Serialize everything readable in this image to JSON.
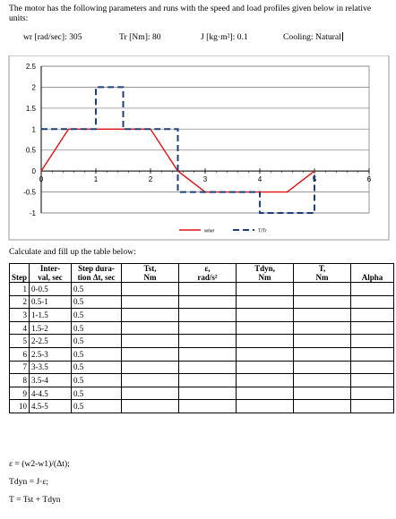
{
  "intro": "The motor has the following parameters and runs with the speed and load profiles given below in relative units:",
  "params": {
    "wr": "wr [rad/sec]:  305",
    "tr": "Tr [Nm]:  80",
    "j": "J [kg·m²]:  0.1",
    "cooling": "Cooling:  Natural"
  },
  "chart_data": {
    "type": "line",
    "xlim": [
      0,
      6
    ],
    "ylim": [
      -1,
      2.5
    ],
    "y_ticks": [
      "2.5",
      "2",
      "1.5",
      "1",
      "0.5",
      "0",
      "-0.5",
      "-1"
    ],
    "x_ticks": [
      "0",
      "1",
      "2",
      "3",
      "4",
      "5",
      "6"
    ],
    "grid": true,
    "legend_position": "bottom-center",
    "series": [
      {
        "name": "w/wr",
        "style": "solid",
        "color": "#e01010",
        "x": [
          0,
          0.5,
          1.5,
          2,
          2.5,
          3,
          4,
          4.5,
          5
        ],
        "y": [
          0,
          1,
          1,
          1,
          0,
          -0.5,
          -0.5,
          -0.5,
          0
        ]
      },
      {
        "name": "T/Tr",
        "style": "dashed",
        "color": "#1f3f7a",
        "x": [
          0,
          1,
          1,
          1.5,
          1.5,
          2.5,
          2.5,
          3,
          3,
          4,
          4,
          5,
          5
        ],
        "y": [
          1,
          1,
          2,
          2,
          1,
          1,
          -0.5,
          -0.5,
          -0.5,
          -0.5,
          -1,
          -1,
          0
        ]
      }
    ]
  },
  "table": {
    "title": "Calculate and fill up the table below:",
    "headers": {
      "step": "Step",
      "interval_1": "Inter-",
      "interval_2": "val, sec",
      "dur_1": "Step dura-",
      "dur_2": "tion Δt, sec",
      "tst_1": "Tst,",
      "tst_2": "Nm",
      "eps_1": "ε,",
      "eps_2": "rad/s²",
      "tdyn_1": "Tdyn,",
      "tdyn_2": "Nm",
      "t_1": "T,",
      "t_2": "Nm",
      "alpha": "Alpha"
    },
    "rows": [
      {
        "step": "1",
        "interval": "0-0.5",
        "duration": "0.5"
      },
      {
        "step": "2",
        "interval": "0.5-1",
        "duration": "0.5"
      },
      {
        "step": "3",
        "interval": "1-1.5",
        "duration": "0.5"
      },
      {
        "step": "4",
        "interval": "1.5-2",
        "duration": "0.5"
      },
      {
        "step": "5",
        "interval": "2-2.5",
        "duration": "0.5"
      },
      {
        "step": "6",
        "interval": "2.5-3",
        "duration": "0.5"
      },
      {
        "step": "7",
        "interval": "3-3.5",
        "duration": "0.5"
      },
      {
        "step": "8",
        "interval": "3.5-4",
        "duration": "0.5"
      },
      {
        "step": "9",
        "interval": "4-4.5",
        "duration": "0.5"
      },
      {
        "step": "10",
        "interval": "4.5-5",
        "duration": "0.5"
      }
    ]
  },
  "formulas": [
    "ε = (w2-w1)/(Δt);",
    "Tdyn = J·ε;",
    "T = Tst + Tdyn"
  ]
}
